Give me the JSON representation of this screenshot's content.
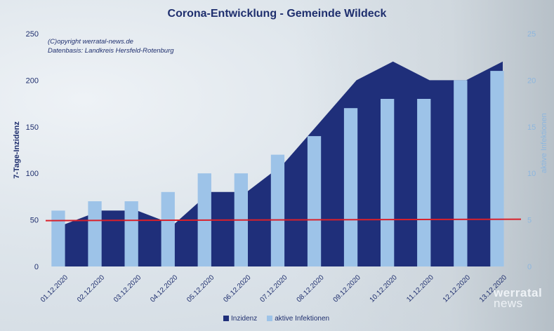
{
  "chart_data": {
    "type": "bar",
    "title": "Corona-Entwicklung - Gemeinde Wildeck",
    "annotations": [
      "(C)opyright werratal-news.de",
      "Datenbasis: Landkreis Hersfeld-Rotenburg"
    ],
    "categories": [
      "01.12.2020",
      "02.12.2020",
      "03.12.2020",
      "04.12.2020",
      "05.12.2020",
      "06.12.2020",
      "07.12.2020",
      "08.12.2020",
      "09.12.2020",
      "10.12.2020",
      "11.12.2020",
      "12.12.2020",
      "13.12.2020"
    ],
    "ylabel": "7-Tage-Inzidenz",
    "y2label": "aktive Infektionen",
    "ylim": [
      0,
      250
    ],
    "y2lim": [
      0,
      25
    ],
    "yticks": [
      "0",
      "50",
      "100",
      "150",
      "200",
      "250"
    ],
    "y2ticks": [
      "0",
      "5",
      "10",
      "15",
      "20",
      "25"
    ],
    "reference_line": 50,
    "series": [
      {
        "name": "Inzidenz",
        "type": "area",
        "axis": "left",
        "color": "#1f2f7a",
        "values": [
          45,
          60,
          60,
          45,
          80,
          80,
          110,
          155,
          200,
          220,
          200,
          200,
          220
        ]
      },
      {
        "name": "aktive Infektionen",
        "type": "bar",
        "axis": "right",
        "color": "#9dc3e8",
        "values": [
          6,
          7,
          7,
          8,
          10,
          10,
          12,
          14,
          17,
          18,
          18,
          20,
          21
        ]
      }
    ],
    "legend": "bottom",
    "grid": false
  },
  "logo": {
    "line1": "werratal",
    "line2": "news"
  }
}
